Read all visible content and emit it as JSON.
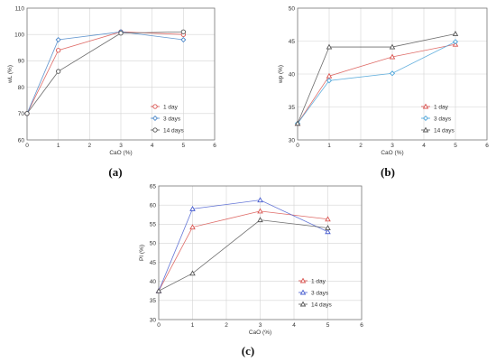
{
  "chart_data": [
    {
      "type": "line",
      "panel": "(a)",
      "xlabel": "CaO (%)",
      "ylabel": "wL (%)",
      "xlim": [
        0,
        6
      ],
      "ylim": [
        60,
        110
      ],
      "xticks": [
        0,
        1,
        2,
        3,
        4,
        5,
        6
      ],
      "yticks": [
        60,
        70,
        80,
        90,
        100,
        110
      ],
      "grid": true,
      "legend_position": "bottom-right",
      "series": [
        {
          "name": "1 day",
          "color": "#d9534f",
          "marker": "circle",
          "x": [
            0,
            1,
            3,
            5
          ],
          "y": [
            70,
            94,
            101,
            100
          ]
        },
        {
          "name": "3 days",
          "color": "#4a86c8",
          "marker": "diamond",
          "x": [
            0,
            1,
            3,
            5
          ],
          "y": [
            70,
            98,
            101,
            98
          ]
        },
        {
          "name": "14 days",
          "color": "#555555",
          "marker": "circle",
          "x": [
            0,
            1,
            3,
            5
          ],
          "y": [
            70,
            86,
            100.5,
            101
          ]
        }
      ]
    },
    {
      "type": "line",
      "panel": "(b)",
      "xlabel": "CaO (%)",
      "ylabel": "wp (%)",
      "xlim": [
        0,
        6
      ],
      "ylim": [
        30,
        50
      ],
      "xticks": [
        0,
        1,
        2,
        3,
        4,
        5,
        6
      ],
      "yticks": [
        30,
        35,
        40,
        45,
        50
      ],
      "grid": true,
      "legend_position": "bottom-right",
      "series": [
        {
          "name": "1 day",
          "color": "#d9534f",
          "marker": "triangle",
          "x": [
            0,
            1,
            3,
            5
          ],
          "y": [
            32.5,
            39.7,
            42.6,
            44.5
          ]
        },
        {
          "name": "3 days",
          "color": "#4aa3d8",
          "marker": "diamond",
          "x": [
            0,
            1,
            3,
            5
          ],
          "y": [
            32.5,
            39,
            40.1,
            44.9
          ]
        },
        {
          "name": "14 days",
          "color": "#555555",
          "marker": "triangle",
          "x": [
            0,
            1,
            3,
            5
          ],
          "y": [
            32.5,
            44.1,
            44.1,
            46.1
          ]
        }
      ]
    },
    {
      "type": "line",
      "panel": "(c)",
      "xlabel": "CaO (%)",
      "ylabel": "PI (%)",
      "xlim": [
        0,
        6
      ],
      "ylim": [
        30,
        65
      ],
      "xticks": [
        0,
        1,
        2,
        3,
        4,
        5,
        6
      ],
      "yticks": [
        30,
        35,
        40,
        45,
        50,
        55,
        60,
        65
      ],
      "grid": true,
      "legend_position": "bottom-right",
      "series": [
        {
          "name": "1 day",
          "color": "#d9534f",
          "marker": "triangle",
          "x": [
            0,
            1,
            3,
            5
          ],
          "y": [
            37.5,
            54.2,
            58.4,
            56.3
          ]
        },
        {
          "name": "3 days",
          "color": "#4a5fd0",
          "marker": "triangle",
          "x": [
            0,
            1,
            3,
            5
          ],
          "y": [
            37.5,
            59,
            61.3,
            53
          ]
        },
        {
          "name": "14 days",
          "color": "#555555",
          "marker": "triangle",
          "x": [
            0,
            1,
            3,
            5
          ],
          "y": [
            37.5,
            42.1,
            56.1,
            54
          ]
        }
      ]
    }
  ]
}
